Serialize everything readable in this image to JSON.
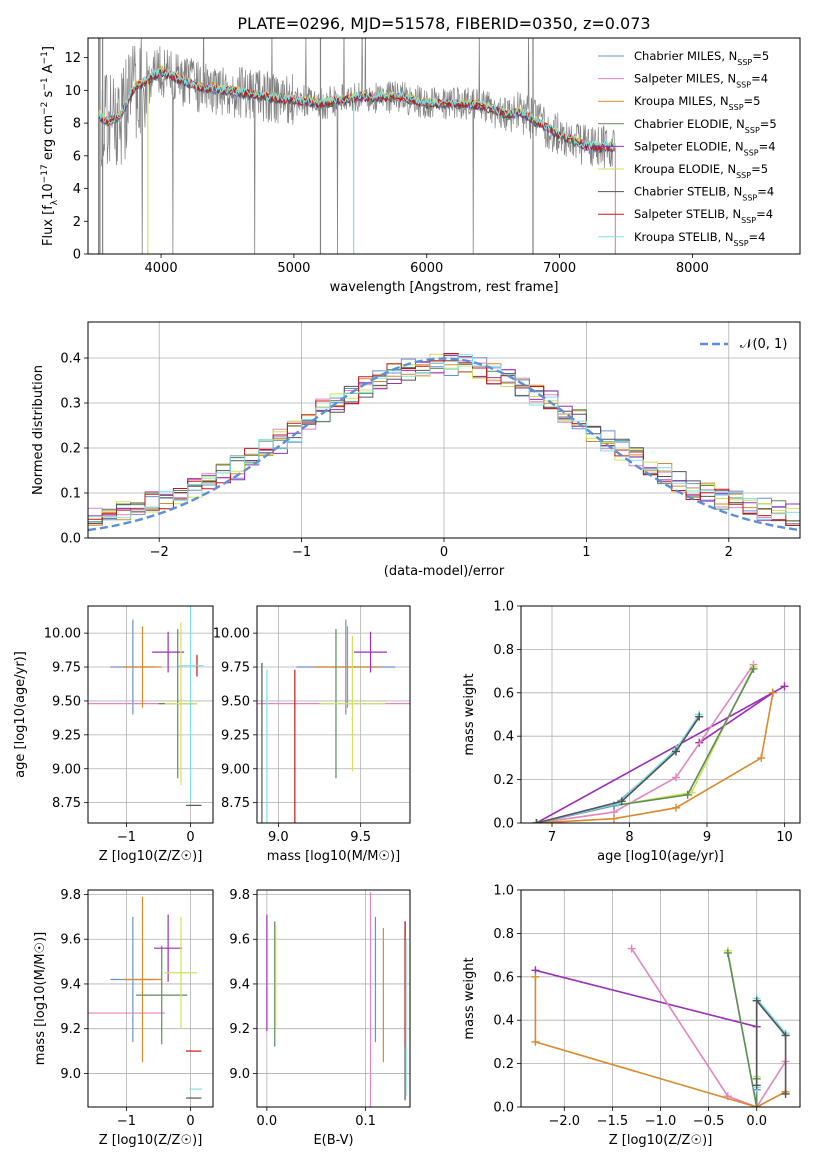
{
  "title": "PLATE=0296, MJD=51578, FIBERID=0350, z=0.073",
  "colors": {
    "chabrier_miles": "#6d8fd1",
    "salpeter_miles": "#e385c0",
    "kroupa_miles": "#d88a2d",
    "chabrier_elodie": "#5c8c5c",
    "salpeter_elodie": "#9b2fb5",
    "kroupa_elodie": "#cde35a",
    "chabrier_stelib": "#555555",
    "salpeter_stelib": "#c01818",
    "kroupa_stelib": "#7ee0e6",
    "data_line": "#808080",
    "gauss": "#5b8fd9"
  },
  "chart_data": [
    {
      "type": "line",
      "xlabel": "wavelength [Angstrom, rest frame]",
      "ylabel_parts": [
        "Flux [f",
        "λ",
        "10",
        "−17",
        " erg cm",
        "−2",
        " s",
        "−1",
        " A",
        "−1",
        "]"
      ],
      "xlim": [
        3450,
        8810
      ],
      "ylim": [
        0,
        13.2
      ],
      "xticks": [
        4000,
        5000,
        6000,
        7000,
        8000
      ],
      "yticks": [
        0,
        2,
        4,
        6,
        8,
        10,
        12
      ],
      "legend_position": "right",
      "legend": [
        {
          "name": "Chabrier MILES, N",
          "sub": "SSP",
          "tail": "=5",
          "color": "chabrier_miles"
        },
        {
          "name": "Salpeter MILES, N",
          "sub": "SSP",
          "tail": "=4",
          "color": "salpeter_miles"
        },
        {
          "name": "Kroupa MILES, N",
          "sub": "SSP",
          "tail": "=5",
          "color": "kroupa_miles"
        },
        {
          "name": "Chabrier ELODIE, N",
          "sub": "SSP",
          "tail": "=5",
          "color": "chabrier_elodie"
        },
        {
          "name": "Salpeter ELODIE, N",
          "sub": "SSP",
          "tail": "=4",
          "color": "salpeter_elodie"
        },
        {
          "name": "Kroupa ELODIE, N",
          "sub": "SSP",
          "tail": "=5",
          "color": "kroupa_elodie"
        },
        {
          "name": "Chabrier STELIB, N",
          "sub": "SSP",
          "tail": "=4",
          "color": "chabrier_stelib"
        },
        {
          "name": "Salpeter STELIB, N",
          "sub": "SSP",
          "tail": "=4",
          "color": "salpeter_stelib"
        },
        {
          "name": "Kroupa STELIB, N",
          "sub": "SSP",
          "tail": "=4",
          "color": "kroupa_stelib"
        }
      ],
      "data_series": {
        "name": "data",
        "color": "data_line",
        "x_range": [
          3550,
          7420
        ]
      },
      "model_envelope": {
        "x": [
          3530,
          3600,
          3700,
          3800,
          3900,
          4000,
          4100,
          4300,
          4500,
          4800,
          5000,
          5200,
          5500,
          5800,
          6000,
          6300,
          6500,
          6600,
          6700,
          6800,
          7000,
          7200,
          7400
        ],
        "y": [
          8.5,
          8.0,
          8.5,
          10.2,
          10.6,
          11.2,
          10.8,
          10.2,
          10.0,
          9.6,
          9.4,
          9.2,
          9.6,
          9.6,
          9.2,
          9.2,
          8.9,
          8.5,
          8.7,
          8.2,
          7.3,
          6.6,
          6.5
        ]
      }
    },
    {
      "type": "bar",
      "xlabel": "(data-model)/error",
      "ylabel": "Normed distribution",
      "xlim": [
        -2.5,
        2.5
      ],
      "ylim": [
        0,
        0.48
      ],
      "xticks": [
        -2,
        -1,
        0,
        1,
        2
      ],
      "yticks": [
        0.0,
        0.1,
        0.2,
        0.3,
        0.4
      ],
      "legend_position": "top-right",
      "gauss_label": "𝒩(0, 1)",
      "bin_width": 0.1,
      "series": [
        {
          "color": "chabrier_miles",
          "offset": 0.01
        },
        {
          "color": "salpeter_miles",
          "offset": -0.02
        },
        {
          "color": "kroupa_miles",
          "offset": 0.0
        },
        {
          "color": "chabrier_elodie",
          "offset": 0.015
        },
        {
          "color": "salpeter_elodie",
          "offset": 0.02
        },
        {
          "color": "kroupa_elodie",
          "offset": -0.01
        },
        {
          "color": "chabrier_stelib",
          "offset": 0.005
        },
        {
          "color": "salpeter_stelib",
          "offset": -0.005
        },
        {
          "color": "kroupa_stelib",
          "offset": 0.0
        }
      ]
    },
    {
      "type": "scatter",
      "xlabel": "Z [log10(Z/Z☉)]",
      "ylabel": "age [log10(age/yr)]",
      "xlim": [
        -1.6,
        0.35
      ],
      "ylim": [
        8.6,
        10.2
      ],
      "xticks": [
        -1,
        0
      ],
      "yticks": [
        8.75,
        9.0,
        9.25,
        9.5,
        9.75,
        10.0
      ],
      "points": [
        {
          "x": -0.9,
          "y": 9.75,
          "xerr": 0.35,
          "yerr": 0.35,
          "color": "chabrier_miles"
        },
        {
          "x": -1.0,
          "y": 9.48,
          "xerr": 0.6,
          "yerr": 0.0,
          "color": "salpeter_miles"
        },
        {
          "x": -0.75,
          "y": 9.75,
          "xerr": 0.3,
          "yerr": 0.3,
          "color": "kroupa_miles"
        },
        {
          "x": -0.2,
          "y": 9.48,
          "xerr": 0.3,
          "yerr": 0.55,
          "color": "chabrier_elodie"
        },
        {
          "x": -0.35,
          "y": 9.86,
          "xerr": 0.25,
          "yerr": 0.15,
          "color": "salpeter_elodie"
        },
        {
          "x": -0.15,
          "y": 9.48,
          "xerr": 0.25,
          "yerr": 0.6,
          "color": "kroupa_elodie"
        },
        {
          "x": 0.05,
          "y": 8.73,
          "xerr": 0.12,
          "yerr": 0.0,
          "color": "chabrier_stelib"
        },
        {
          "x": 0.1,
          "y": 9.76,
          "xerr": 0.0,
          "yerr": 0.08,
          "color": "salpeter_stelib"
        },
        {
          "x": 0.0,
          "y": 9.76,
          "xerr": 0.2,
          "yerr": 1.0,
          "color": "kroupa_stelib"
        }
      ]
    },
    {
      "type": "scatter",
      "xlabel": "mass [log10(M/M☉)]",
      "ylabel": "",
      "xlim": [
        8.87,
        9.8
      ],
      "ylim": [
        8.6,
        10.2
      ],
      "xticks": [
        9.0,
        9.5
      ],
      "yticks": [
        8.75,
        9.0,
        9.25,
        9.5,
        9.75,
        10.0
      ],
      "points": [
        {
          "x": 9.41,
          "y": 9.75,
          "xerr": 0.3,
          "yerr": 0.35,
          "color": "chabrier_miles"
        },
        {
          "x": 9.27,
          "y": 9.48,
          "xerr": 0.56,
          "yerr": 0.0,
          "color": "salpeter_miles"
        },
        {
          "x": 9.42,
          "y": 9.75,
          "xerr": 0.2,
          "yerr": 0.3,
          "color": "kroupa_miles"
        },
        {
          "x": 9.35,
          "y": 9.48,
          "xerr": 0.0,
          "yerr": 0.55,
          "color": "chabrier_elodie"
        },
        {
          "x": 9.56,
          "y": 9.86,
          "xerr": 0.1,
          "yerr": 0.15,
          "color": "salpeter_elodie"
        },
        {
          "x": 9.45,
          "y": 9.48,
          "xerr": 0.2,
          "yerr": 0.5,
          "color": "kroupa_elodie"
        },
        {
          "x": 8.9,
          "y": 8.73,
          "xerr": 0.0,
          "yerr": 1.05,
          "color": "chabrier_stelib"
        },
        {
          "x": 9.1,
          "y": 8.73,
          "xerr": 0.0,
          "yerr": 1.0,
          "color": "salpeter_stelib"
        },
        {
          "x": 8.93,
          "y": 8.73,
          "xerr": 0.0,
          "yerr": 1.0,
          "color": "kroupa_stelib"
        }
      ]
    },
    {
      "type": "line",
      "xlabel": "age [log10(age/yr)]",
      "ylabel": "mass weight",
      "xlim": [
        6.6,
        10.2
      ],
      "ylim": [
        0,
        1.0
      ],
      "xticks": [
        7,
        8,
        9,
        10
      ],
      "yticks": [
        0.0,
        0.2,
        0.4,
        0.6,
        0.8,
        1.0
      ],
      "series": [
        {
          "color": "salpeter_elodie",
          "x": [
            6.8,
            10.0
          ],
          "y": [
            0.0,
            0.63
          ]
        },
        {
          "color": "salpeter_elodie",
          "x": [
            8.9,
            9.85
          ],
          "y": [
            0.37,
            0.6
          ]
        },
        {
          "color": "salpeter_miles",
          "x": [
            6.8,
            7.8,
            8.6,
            9.6
          ],
          "y": [
            0.0,
            0.05,
            0.21,
            0.73
          ]
        },
        {
          "color": "kroupa_miles",
          "x": [
            6.8,
            7.8,
            8.6,
            9.7,
            9.85
          ],
          "y": [
            0.0,
            0.02,
            0.07,
            0.3,
            0.6
          ]
        },
        {
          "color": "kroupa_elodie",
          "x": [
            6.8,
            7.8,
            8.8,
            9.6
          ],
          "y": [
            0.0,
            0.08,
            0.14,
            0.72
          ]
        },
        {
          "color": "chabrier_elodie",
          "x": [
            6.8,
            7.8,
            8.75,
            9.6
          ],
          "y": [
            0.0,
            0.08,
            0.13,
            0.71
          ]
        },
        {
          "color": "chabrier_miles",
          "x": [
            6.8,
            7.8,
            8.6,
            8.9
          ],
          "y": [
            0.0,
            0.08,
            0.33,
            0.49
          ]
        },
        {
          "color": "kroupa_stelib",
          "x": [
            6.8,
            7.85,
            8.6,
            8.9
          ],
          "y": [
            0.0,
            0.09,
            0.34,
            0.5
          ]
        },
        {
          "color": "chabrier_stelib",
          "x": [
            6.8,
            7.9,
            8.6,
            8.9
          ],
          "y": [
            0.0,
            0.1,
            0.33,
            0.49
          ]
        }
      ]
    },
    {
      "type": "scatter",
      "xlabel": "Z [log10(Z/Z☉)]",
      "ylabel": "mass [log10(M/M☉)]",
      "xlim": [
        -1.6,
        0.35
      ],
      "ylim": [
        8.85,
        9.82
      ],
      "xticks": [
        -1,
        0
      ],
      "yticks": [
        9.0,
        9.2,
        9.4,
        9.6,
        9.8
      ],
      "points": [
        {
          "x": -0.9,
          "y": 9.42,
          "xerr": 0.35,
          "yerr": 0.28,
          "color": "chabrier_miles"
        },
        {
          "x": -1.0,
          "y": 9.27,
          "xerr": 0.6,
          "yerr": 0.0,
          "color": "salpeter_miles"
        },
        {
          "x": -0.75,
          "y": 9.42,
          "xerr": 0.3,
          "yerr": 0.37,
          "color": "kroupa_miles"
        },
        {
          "x": -0.45,
          "y": 9.35,
          "xerr": 0.4,
          "yerr": 0.22,
          "color": "chabrier_elodie"
        },
        {
          "x": -0.35,
          "y": 9.56,
          "xerr": 0.22,
          "yerr": 0.15,
          "color": "salpeter_elodie"
        },
        {
          "x": -0.15,
          "y": 9.45,
          "xerr": 0.25,
          "yerr": 0.25,
          "color": "kroupa_elodie"
        },
        {
          "x": 0.05,
          "y": 8.89,
          "xerr": 0.12,
          "yerr": 0.0,
          "color": "chabrier_stelib"
        },
        {
          "x": 0.05,
          "y": 9.1,
          "xerr": 0.12,
          "yerr": 0.0,
          "color": "salpeter_stelib"
        },
        {
          "x": 0.08,
          "y": 8.93,
          "xerr": 0.1,
          "yerr": 0.0,
          "color": "kroupa_stelib"
        }
      ]
    },
    {
      "type": "scatter",
      "xlabel": "E(B-V)",
      "ylabel": "",
      "xlim": [
        -0.01,
        0.145
      ],
      "ylim": [
        8.85,
        9.82
      ],
      "xticks": [
        0.0,
        0.1
      ],
      "yticks": [
        9.0,
        9.2,
        9.4,
        9.6,
        9.8
      ],
      "points": [
        {
          "x": 0.11,
          "y": 9.42,
          "xerr": 0,
          "yerr": 0.28,
          "color": "chabrier_miles"
        },
        {
          "x": 0.105,
          "y": 9.27,
          "xerr": 0,
          "yerr": 0.54,
          "color": "salpeter_miles"
        },
        {
          "x": 0.118,
          "y": 9.35,
          "xerr": 0,
          "yerr": 0.3,
          "color": "kroupa_miles"
        },
        {
          "x": 0.008,
          "y": 9.4,
          "xerr": 0,
          "yerr": 0.28,
          "color": "chabrier_elodie"
        },
        {
          "x": 0.0,
          "y": 9.45,
          "xerr": 0,
          "yerr": 0.26,
          "color": "salpeter_elodie"
        },
        {
          "x": 0.009,
          "y": 9.43,
          "xerr": 0,
          "yerr": 0.23,
          "color": "kroupa_elodie"
        },
        {
          "x": 0.14,
          "y": 9.28,
          "xerr": 0,
          "yerr": 0.4,
          "color": "chabrier_stelib"
        },
        {
          "x": 0.14,
          "y": 9.4,
          "xerr": 0,
          "yerr": 0.28,
          "color": "salpeter_stelib"
        },
        {
          "x": 0.141,
          "y": 9.25,
          "xerr": 0,
          "yerr": 0.35,
          "color": "kroupa_stelib"
        }
      ]
    },
    {
      "type": "line",
      "xlabel": "Z [log10(Z/Z☉)]",
      "ylabel": "mass weight",
      "xlim": [
        -2.45,
        0.45
      ],
      "ylim": [
        0,
        1.0
      ],
      "xticks": [
        -2.0,
        -1.5,
        -1.0,
        -0.5,
        0.0
      ],
      "yticks": [
        0.0,
        0.2,
        0.4,
        0.6,
        0.8,
        1.0
      ],
      "series": [
        {
          "color": "salpeter_elodie",
          "x": [
            -2.3,
            0.0
          ],
          "y": [
            0.63,
            0.37
          ]
        },
        {
          "color": "salpeter_miles",
          "x": [
            -1.3,
            -0.3,
            0.0,
            0.3
          ],
          "y": [
            0.73,
            0.05,
            0.0,
            0.21
          ]
        },
        {
          "color": "kroupa_miles",
          "x": [
            -2.3,
            -2.3,
            0.0,
            0.3
          ],
          "y": [
            0.6,
            0.3,
            0.0,
            0.07
          ]
        },
        {
          "color": "kroupa_elodie",
          "x": [
            -0.3,
            0.0,
            0.0
          ],
          "y": [
            0.72,
            0.0,
            0.14
          ]
        },
        {
          "color": "chabrier_elodie",
          "x": [
            -0.3,
            0.0,
            0.0
          ],
          "y": [
            0.71,
            0.0,
            0.13
          ]
        },
        {
          "color": "chabrier_miles",
          "x": [
            0.0,
            0.0,
            0.3
          ],
          "y": [
            0.08,
            0.49,
            0.33
          ]
        },
        {
          "color": "kroupa_stelib",
          "x": [
            0.0,
            0.0,
            0.3
          ],
          "y": [
            0.09,
            0.5,
            0.34
          ]
        },
        {
          "color": "chabrier_stelib",
          "x": [
            0.0,
            0.0,
            0.3,
            0.3
          ],
          "y": [
            0.1,
            0.49,
            0.33,
            0.06
          ]
        }
      ]
    }
  ]
}
